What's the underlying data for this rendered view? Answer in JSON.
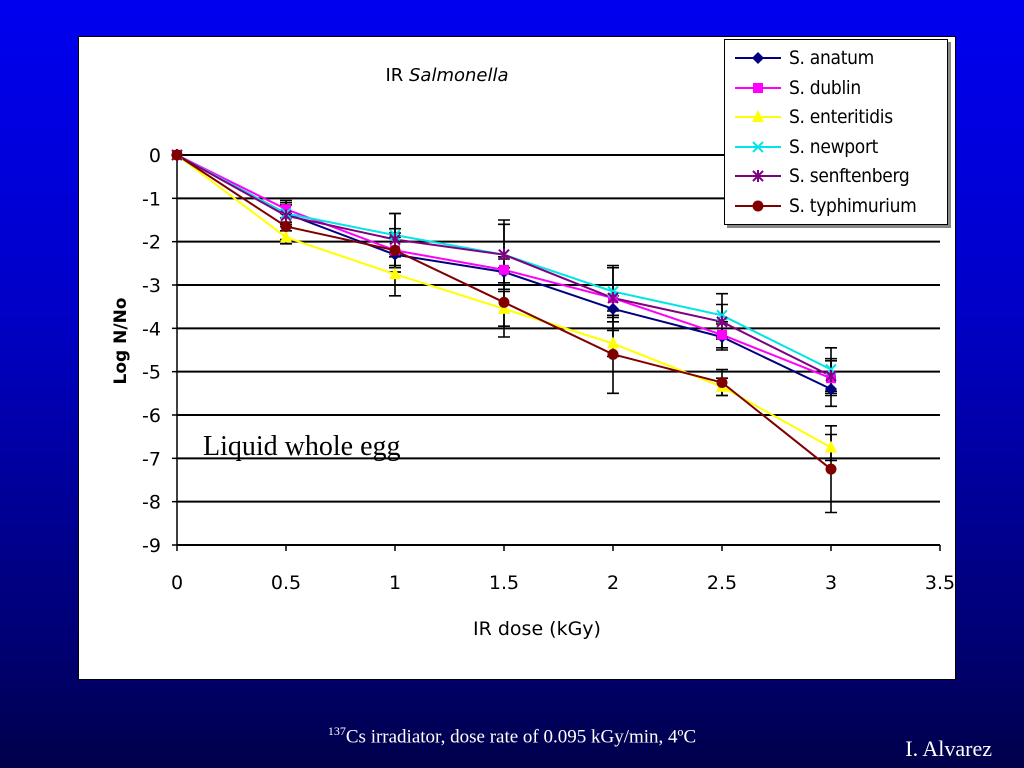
{
  "chart_data": {
    "type": "line",
    "title_prefix": "IR ",
    "title_italic": "Salmonella",
    "xlabel": "IR dose (kGy)",
    "ylabel": "Log N/No",
    "xlim": [
      0,
      3.5
    ],
    "ylim": [
      -9,
      0
    ],
    "x_ticks": [
      "0",
      "0.5",
      "1",
      "1.5",
      "2",
      "2.5",
      "3",
      "3.5"
    ],
    "y_ticks": [
      "0",
      "-1",
      "-2",
      "-3",
      "-4",
      "-5",
      "-6",
      "-7",
      "-8",
      "-9"
    ],
    "grid": "horizontal",
    "legend_position": "top-right",
    "annotation": "Liquid whole egg",
    "x": [
      0,
      0.5,
      1,
      1.5,
      2,
      2.5,
      3
    ],
    "series": [
      {
        "name": "S. anatum",
        "color": "#000080",
        "marker": "diamond",
        "values": [
          0,
          -1.35,
          -2.3,
          -2.7,
          -3.55,
          -4.2,
          -5.4
        ],
        "errors": [
          0,
          0.2,
          0.4,
          0.3,
          0.3,
          0.3,
          0.4
        ]
      },
      {
        "name": "S. dublin",
        "color": "#ff00ff",
        "marker": "square",
        "values": [
          0,
          -1.25,
          -2.2,
          -2.65,
          -3.3,
          -4.15,
          -5.15
        ],
        "errors": [
          0,
          0.2,
          0.4,
          0.3,
          0.3,
          0.3,
          0.4
        ]
      },
      {
        "name": "S. enteritidis",
        "color": "#ffff00",
        "marker": "triangle",
        "values": [
          0,
          -1.9,
          -2.75,
          -3.55,
          -4.35,
          -5.35,
          -6.75
        ],
        "errors": [
          0,
          0.15,
          0.5,
          0.4,
          0.3,
          0.2,
          0.3
        ]
      },
      {
        "name": "S. newport",
        "color": "#00e5e5",
        "marker": "x",
        "values": [
          0,
          -1.35,
          -1.85,
          -2.3,
          -3.15,
          -3.7,
          -4.95
        ],
        "errors": [
          0,
          0.25,
          0.5,
          0.7,
          0.6,
          0.5,
          0.5
        ]
      },
      {
        "name": "S. senftenberg",
        "color": "#800080",
        "marker": "star",
        "values": [
          0,
          -1.4,
          -1.95,
          -2.3,
          -3.3,
          -3.85,
          -5.1
        ],
        "errors": [
          0,
          0.25,
          0.6,
          0.8,
          0.7,
          0.4,
          0.4
        ]
      },
      {
        "name": "S. typhimurium",
        "color": "#800000",
        "marker": "circle",
        "values": [
          0,
          -1.65,
          -2.2,
          -3.4,
          -4.6,
          -5.25,
          -7.25
        ],
        "errors": [
          0,
          0.3,
          0.5,
          0.8,
          0.9,
          0.3,
          1.0
        ]
      }
    ]
  },
  "caption": {
    "superscript": "137",
    "text": "Cs irradiator, dose rate of 0.095 kGy/min, 4ºC"
  },
  "author": "I. Alvarez"
}
